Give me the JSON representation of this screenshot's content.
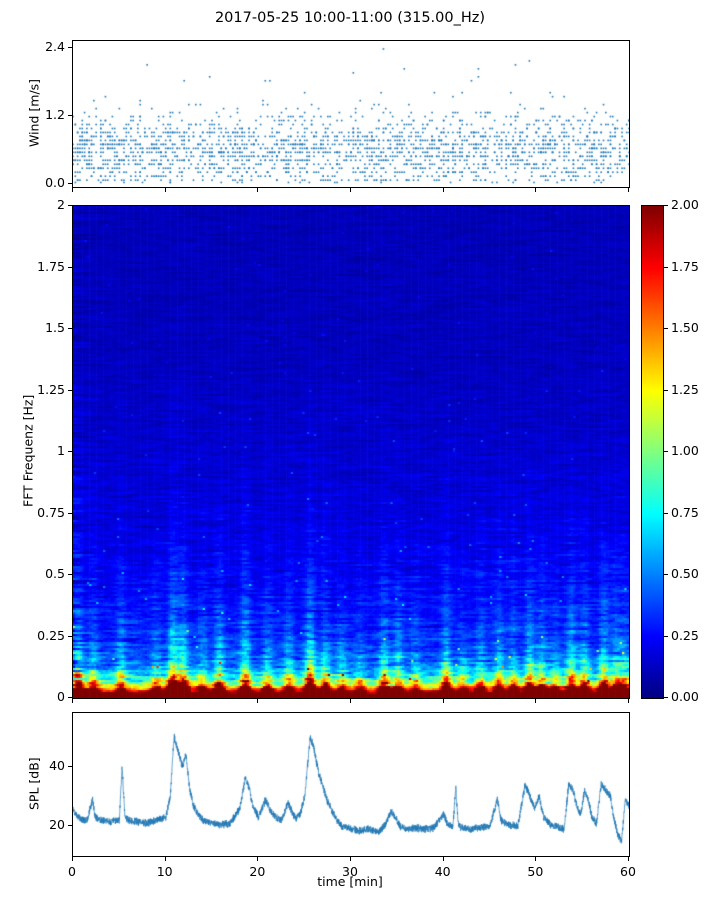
{
  "title": "2017-05-25 10:00-11:00 (315.00_Hz)",
  "colors": {
    "scatter": "#1f77b4",
    "line": "#1f77b4",
    "axis": "#000000",
    "background": "#ffffff"
  },
  "chart_data": [
    {
      "type": "scatter",
      "name": "wind-speed",
      "ylabel": "Wind [m/s]",
      "xlim": [
        0,
        60
      ],
      "ylim": [
        -0.05,
        2.52
      ],
      "yticks": [
        {
          "v": 0.0,
          "label": "0.0"
        },
        {
          "v": 1.2,
          "label": "1.2"
        },
        {
          "v": 2.4,
          "label": "2.4"
        }
      ],
      "point_count": 2200,
      "distribution": {
        "mean": 0.6,
        "sd": 0.33,
        "tail_fraction": 0.07,
        "tail_offset": 0.5,
        "tail_scale": 0.55,
        "quantum_y": 0.07,
        "quantum_x_min": 0.25,
        "max": 2.45
      }
    },
    {
      "type": "heatmap",
      "name": "fft-spectrogram",
      "ylabel": "FFT Frequenz [Hz]",
      "xlim": [
        0,
        60
      ],
      "ylim": [
        0,
        2
      ],
      "yticks": [
        {
          "v": 0,
          "label": "0"
        },
        {
          "v": 0.25,
          "label": "0.25"
        },
        {
          "v": 0.5,
          "label": "0.5"
        },
        {
          "v": 0.75,
          "label": "0.75"
        },
        {
          "v": 1,
          "label": "1"
        },
        {
          "v": 1.25,
          "label": "1.25"
        },
        {
          "v": 1.5,
          "label": "1.5"
        },
        {
          "v": 1.75,
          "label": "1.75"
        },
        {
          "v": 2,
          "label": "2"
        }
      ],
      "colormap": "jet",
      "clim": [
        0,
        2
      ],
      "freq_intensity_profile": [
        [
          0,
          2.4
        ],
        [
          0.015,
          2.2
        ],
        [
          0.03,
          1.7
        ],
        [
          0.05,
          1.15
        ],
        [
          0.08,
          0.75
        ],
        [
          0.12,
          0.5
        ],
        [
          0.18,
          0.38
        ],
        [
          0.25,
          0.32
        ],
        [
          0.35,
          0.27
        ],
        [
          0.5,
          0.22
        ],
        [
          0.7,
          0.18
        ],
        [
          1.0,
          0.15
        ],
        [
          1.4,
          0.12
        ],
        [
          2.0,
          0.11
        ]
      ],
      "event_bursts": [
        [
          0.6,
          1.1
        ],
        [
          2.2,
          0.7
        ],
        [
          5.2,
          0.8
        ],
        [
          9.0,
          0.6
        ],
        [
          10.8,
          1.7
        ],
        [
          11.9,
          1.4
        ],
        [
          14.0,
          0.5
        ],
        [
          15.8,
          1.1
        ],
        [
          18.6,
          1.4
        ],
        [
          21.0,
          0.9
        ],
        [
          23.3,
          0.8
        ],
        [
          25.6,
          1.8
        ],
        [
          27.2,
          0.9
        ],
        [
          29.0,
          0.5
        ],
        [
          31.0,
          0.4
        ],
        [
          33.6,
          1.1
        ],
        [
          35.1,
          0.8
        ],
        [
          37.0,
          0.5
        ],
        [
          40.3,
          1.2
        ],
        [
          42.0,
          0.5
        ],
        [
          44.0,
          0.7
        ],
        [
          46.0,
          0.8
        ],
        [
          47.5,
          0.7
        ],
        [
          49.3,
          1.2
        ],
        [
          50.6,
          0.9
        ],
        [
          52.0,
          0.5
        ],
        [
          53.8,
          1.2
        ],
        [
          55.2,
          1.0
        ],
        [
          57.3,
          1.3
        ],
        [
          58.6,
          1.0
        ],
        [
          59.6,
          0.8
        ]
      ],
      "colorbar": {
        "ticks": [
          {
            "v": 0,
            "label": "0.00"
          },
          {
            "v": 0.25,
            "label": "0.25"
          },
          {
            "v": 0.5,
            "label": "0.50"
          },
          {
            "v": 0.75,
            "label": "0.75"
          },
          {
            "v": 1.0,
            "label": "1.00"
          },
          {
            "v": 1.25,
            "label": "1.25"
          },
          {
            "v": 1.5,
            "label": "1.50"
          },
          {
            "v": 1.75,
            "label": "1.75"
          },
          {
            "v": 2.0,
            "label": "2.00"
          }
        ]
      }
    },
    {
      "type": "line",
      "name": "spl",
      "ylabel": "SPL [dB]",
      "xlabel": "time [min]",
      "xlim": [
        0,
        60
      ],
      "ylim": [
        10,
        58
      ],
      "yticks": [
        {
          "v": 20,
          "label": "20"
        },
        {
          "v": 40,
          "label": "40"
        }
      ],
      "xticks": [
        {
          "v": 0,
          "label": "0"
        },
        {
          "v": 10,
          "label": "10"
        },
        {
          "v": 20,
          "label": "20"
        },
        {
          "v": 30,
          "label": "30"
        },
        {
          "v": 40,
          "label": "40"
        },
        {
          "v": 50,
          "label": "50"
        },
        {
          "v": 60,
          "label": "60"
        }
      ],
      "noise_db": 0.9,
      "anchors": [
        [
          0,
          26
        ],
        [
          0.3,
          24
        ],
        [
          1,
          22
        ],
        [
          1.5,
          22
        ],
        [
          2.1,
          29
        ],
        [
          2.4,
          23
        ],
        [
          3,
          22
        ],
        [
          4,
          21.5
        ],
        [
          5,
          22
        ],
        [
          5.3,
          40
        ],
        [
          5.6,
          23
        ],
        [
          6,
          22
        ],
        [
          7,
          21.5
        ],
        [
          8,
          21
        ],
        [
          9,
          22
        ],
        [
          10,
          23
        ],
        [
          10.5,
          30
        ],
        [
          10.9,
          50
        ],
        [
          11.3,
          46
        ],
        [
          11.8,
          40
        ],
        [
          12.2,
          44
        ],
        [
          12.6,
          32
        ],
        [
          13,
          27
        ],
        [
          13.5,
          24
        ],
        [
          14,
          22
        ],
        [
          15,
          21
        ],
        [
          16,
          20.5
        ],
        [
          17,
          21
        ],
        [
          18,
          26
        ],
        [
          18.6,
          36
        ],
        [
          19,
          33
        ],
        [
          19.4,
          27
        ],
        [
          20,
          23
        ],
        [
          20.8,
          29
        ],
        [
          21.2,
          26
        ],
        [
          21.8,
          23
        ],
        [
          22.5,
          22
        ],
        [
          23.2,
          28
        ],
        [
          23.6,
          25
        ],
        [
          24,
          22.5
        ],
        [
          24.5,
          24
        ],
        [
          25,
          30
        ],
        [
          25.6,
          50
        ],
        [
          26,
          46
        ],
        [
          26.5,
          38
        ],
        [
          27,
          33
        ],
        [
          27.5,
          28
        ],
        [
          28,
          25
        ],
        [
          28.5,
          22
        ],
        [
          29,
          20
        ],
        [
          30,
          19
        ],
        [
          31,
          18.5
        ],
        [
          32,
          19
        ],
        [
          33,
          18
        ],
        [
          33.8,
          21
        ],
        [
          34.3,
          25
        ],
        [
          34.8,
          23
        ],
        [
          35.3,
          20
        ],
        [
          36,
          19
        ],
        [
          37,
          19.5
        ],
        [
          38,
          19
        ],
        [
          39,
          19.5
        ],
        [
          40,
          24
        ],
        [
          40.4,
          21
        ],
        [
          41,
          19.5
        ],
        [
          41.3,
          33
        ],
        [
          41.6,
          20
        ],
        [
          42,
          19.5
        ],
        [
          43,
          19
        ],
        [
          44,
          19.5
        ],
        [
          45,
          20
        ],
        [
          45.8,
          29
        ],
        [
          46.2,
          22
        ],
        [
          47,
          20.5
        ],
        [
          48,
          20
        ],
        [
          48.8,
          34
        ],
        [
          49.3,
          30
        ],
        [
          49.8,
          26
        ],
        [
          50.3,
          30
        ],
        [
          50.8,
          23
        ],
        [
          51.5,
          20.5
        ],
        [
          52,
          20
        ],
        [
          53,
          19
        ],
        [
          53.5,
          34
        ],
        [
          54,
          32
        ],
        [
          54.4,
          26
        ],
        [
          54.8,
          24
        ],
        [
          55.2,
          32
        ],
        [
          55.6,
          29
        ],
        [
          56,
          23
        ],
        [
          56.5,
          21
        ],
        [
          57,
          34
        ],
        [
          57.5,
          32
        ],
        [
          58,
          30
        ],
        [
          58.4,
          22
        ],
        [
          58.8,
          17
        ],
        [
          59.2,
          15
        ],
        [
          59.6,
          29
        ],
        [
          60,
          27
        ]
      ]
    }
  ]
}
